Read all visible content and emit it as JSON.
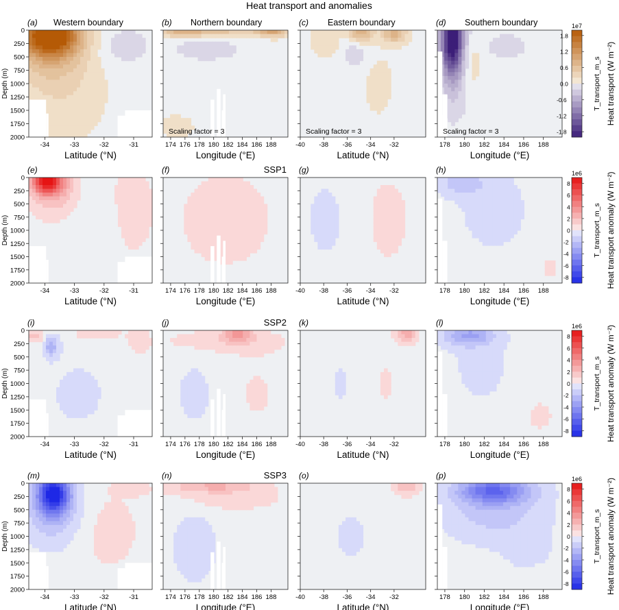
{
  "title": "Heat transport and anomalies",
  "chart_data": {
    "type": "heatmap",
    "title": "Heat transport and anomalies",
    "ylabel": "Depth (m)",
    "ylim": [
      2000,
      0
    ],
    "yticks": [
      "0",
      "250",
      "500",
      "750",
      "1000",
      "1250",
      "1500",
      "1750",
      "2000"
    ],
    "columns": [
      {
        "xlabel": "Latitude (°N)",
        "xticks": [
          "-34",
          "-33",
          "-32",
          "-31"
        ]
      },
      {
        "xlabel": "Longitude (°E)",
        "xticks": [
          "174",
          "176",
          "178",
          "180",
          "182",
          "184",
          "186",
          "188"
        ]
      },
      {
        "xlabel": "Latitude (°N)",
        "xticks": [
          "-40",
          "-38",
          "-36",
          "-34",
          "-32"
        ]
      },
      {
        "xlabel": "Longitude (°E)",
        "xticks": [
          "178",
          "180",
          "182",
          "184",
          "186",
          "188"
        ]
      }
    ],
    "rows": [
      {
        "panels": [
          {
            "label": "(a)",
            "title": "Western boundary",
            "note": ""
          },
          {
            "label": "(b)",
            "title": "Northern boundary",
            "note": "Scaling factor = 3"
          },
          {
            "label": "(c)",
            "title": "Eastern boundary",
            "note": "Scaling factor = 3"
          },
          {
            "label": "(d)",
            "title": "Southern boundary",
            "note": "Scaling factor = 3"
          }
        ],
        "scenario": "",
        "colorbar": {
          "exponent": "1e7",
          "ticks": [
            "1.8",
            "1.2",
            "0.6",
            "0.0",
            "-0.6",
            "-1.2",
            "-1.8"
          ],
          "label_inner": "T_transport_m_s",
          "label_outer": "Heat transport (W m⁻²)",
          "colormap": "PuOr",
          "range": [
            -2.0,
            2.0
          ]
        }
      },
      {
        "panels": [
          {
            "label": "(e)",
            "title": "",
            "note": ""
          },
          {
            "label": "(f)",
            "title": "",
            "note": ""
          },
          {
            "label": "(g)",
            "title": "",
            "note": ""
          },
          {
            "label": "(h)",
            "title": "",
            "note": ""
          }
        ],
        "scenario": "SSP1",
        "colorbar": {
          "exponent": "1e6",
          "ticks": [
            "8",
            "6",
            "4",
            "2",
            "0",
            "-2",
            "-4",
            "-6",
            "-8"
          ],
          "label_inner": "T_transport_m_s",
          "label_outer": "Heat transport anomaly (W m⁻²)",
          "colormap": "bwr",
          "range": [
            -9,
            9
          ]
        }
      },
      {
        "panels": [
          {
            "label": "(i)",
            "title": "",
            "note": ""
          },
          {
            "label": "(j)",
            "title": "",
            "note": ""
          },
          {
            "label": "(k)",
            "title": "",
            "note": ""
          },
          {
            "label": "(l)",
            "title": "",
            "note": ""
          }
        ],
        "scenario": "SSP2",
        "colorbar": {
          "exponent": "1e6",
          "ticks": [
            "8",
            "6",
            "4",
            "2",
            "0",
            "-2",
            "-4",
            "-6",
            "-8"
          ],
          "label_inner": "T_transport_m_s",
          "label_outer": "Heat transport anomaly (W m⁻²)",
          "colormap": "bwr",
          "range": [
            -9,
            9
          ]
        }
      },
      {
        "panels": [
          {
            "label": "(m)",
            "title": "",
            "note": ""
          },
          {
            "label": "(n)",
            "title": "",
            "note": ""
          },
          {
            "label": "(o)",
            "title": "",
            "note": ""
          },
          {
            "label": "(p)",
            "title": "",
            "note": ""
          }
        ],
        "scenario": "SSP3",
        "colorbar": {
          "exponent": "1e6",
          "ticks": [
            "8",
            "6",
            "4",
            "2",
            "0",
            "-2",
            "-4",
            "-6",
            "-8"
          ],
          "label_inner": "T_transport_m_s",
          "label_outer": "Heat transport anomaly (W m⁻²)",
          "colormap": "bwr",
          "range": [
            -9,
            9
          ]
        }
      }
    ]
  }
}
